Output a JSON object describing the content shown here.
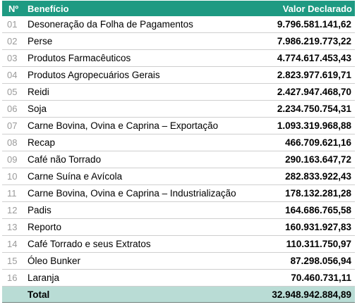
{
  "table": {
    "headers": {
      "number": "Nº",
      "benefit": "Benefício",
      "value": "Valor Declarado"
    },
    "rows": [
      {
        "number": "01",
        "benefit": "Desoneração da Folha de Pagamentos",
        "value": "9.796.581.141,62"
      },
      {
        "number": "02",
        "benefit": "Perse",
        "value": "7.986.219.773,22"
      },
      {
        "number": "03",
        "benefit": "Produtos Farmacêuticos",
        "value": "4.774.617.453,43"
      },
      {
        "number": "04",
        "benefit": "Produtos Agropecuários Gerais",
        "value": "2.823.977.619,71"
      },
      {
        "number": "05",
        "benefit": "Reidi",
        "value": "2.427.947.468,70"
      },
      {
        "number": "06",
        "benefit": "Soja",
        "value": "2.234.750.754,31"
      },
      {
        "number": "07",
        "benefit": "Carne Bovina, Ovina e Caprina – Exportação",
        "value": "1.093.319.968,88"
      },
      {
        "number": "08",
        "benefit": "Recap",
        "value": "466.709.621,16"
      },
      {
        "number": "09",
        "benefit": "Café não Torrado",
        "value": "290.163.647,72"
      },
      {
        "number": "10",
        "benefit": "Carne Suína e Avícola",
        "value": "282.833.922,43"
      },
      {
        "number": "11",
        "benefit": "Carne Bovina, Ovina e Caprina – Industrialização",
        "value": "178.132.281,28"
      },
      {
        "number": "12",
        "benefit": "Padis",
        "value": "164.686.765,58"
      },
      {
        "number": "13",
        "benefit": "Reporto",
        "value": "160.931.927,83"
      },
      {
        "number": "14",
        "benefit": "Café Torrado e seus Extratos",
        "value": "110.311.750,97"
      },
      {
        "number": "15",
        "benefit": "Óleo Bunker",
        "value": "87.298.056,94"
      },
      {
        "number": "16",
        "benefit": "Laranja",
        "value": "70.460.731,11"
      }
    ],
    "total": {
      "label": "Total",
      "value": "32.948.942.884,89"
    }
  },
  "colors": {
    "header": "#1e9a82",
    "total_row": "#b9dcd5",
    "row_divider": "#cfcfcf"
  }
}
